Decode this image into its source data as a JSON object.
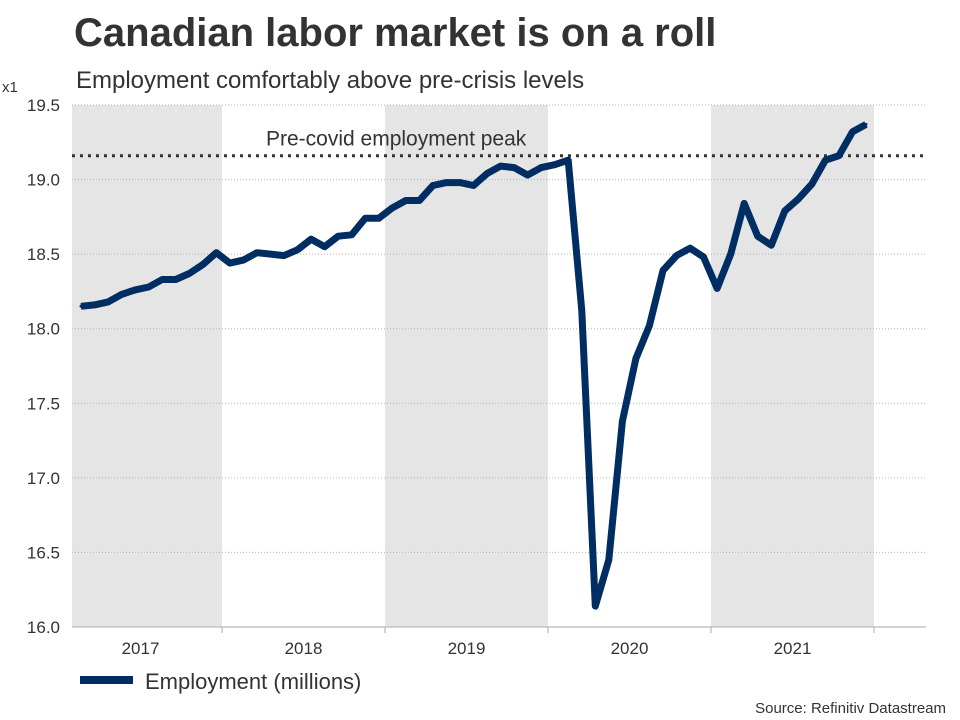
{
  "chart_data": {
    "type": "line",
    "title": "Canadian labor market is on a roll",
    "subtitle": "Employment comfortably above pre-crisis levels",
    "unit_label": "x1",
    "ylim": [
      16.0,
      19.5
    ],
    "yticks": [
      16.0,
      16.5,
      17.0,
      17.5,
      18.0,
      18.5,
      19.0,
      19.5
    ],
    "ytick_labels": [
      "16.0",
      "16.5",
      "17.0",
      "17.5",
      "18.0",
      "18.5",
      "19.0",
      "19.5"
    ],
    "grid": true,
    "years": [
      "2017",
      "2018",
      "2019",
      "2020",
      "2021"
    ],
    "shaded_years": [
      "2017",
      "2019",
      "2021"
    ],
    "reference_line": {
      "label": "Pre-covid employment peak",
      "value": 19.16,
      "style": "dotted"
    },
    "series": [
      {
        "name": "Employment (millions)",
        "color": "#002d62",
        "values": [
          18.15,
          18.16,
          18.18,
          18.23,
          18.26,
          18.28,
          18.33,
          18.33,
          18.37,
          18.43,
          18.51,
          18.44,
          18.46,
          18.51,
          18.5,
          18.49,
          18.53,
          18.6,
          18.55,
          18.62,
          18.63,
          18.74,
          18.74,
          18.81,
          18.86,
          18.86,
          18.96,
          18.98,
          18.98,
          18.96,
          19.04,
          19.09,
          19.08,
          19.03,
          19.08,
          19.1,
          19.13,
          18.12,
          16.14,
          16.45,
          17.38,
          17.8,
          18.02,
          18.39,
          18.49,
          18.54,
          18.48,
          18.27,
          18.5,
          18.84,
          18.62,
          18.56,
          18.79,
          18.87,
          18.97,
          19.13,
          19.16,
          19.32,
          19.37
        ]
      }
    ],
    "legend": {
      "position": "bottom-left"
    },
    "source": "Source: Refinitiv Datastream"
  }
}
